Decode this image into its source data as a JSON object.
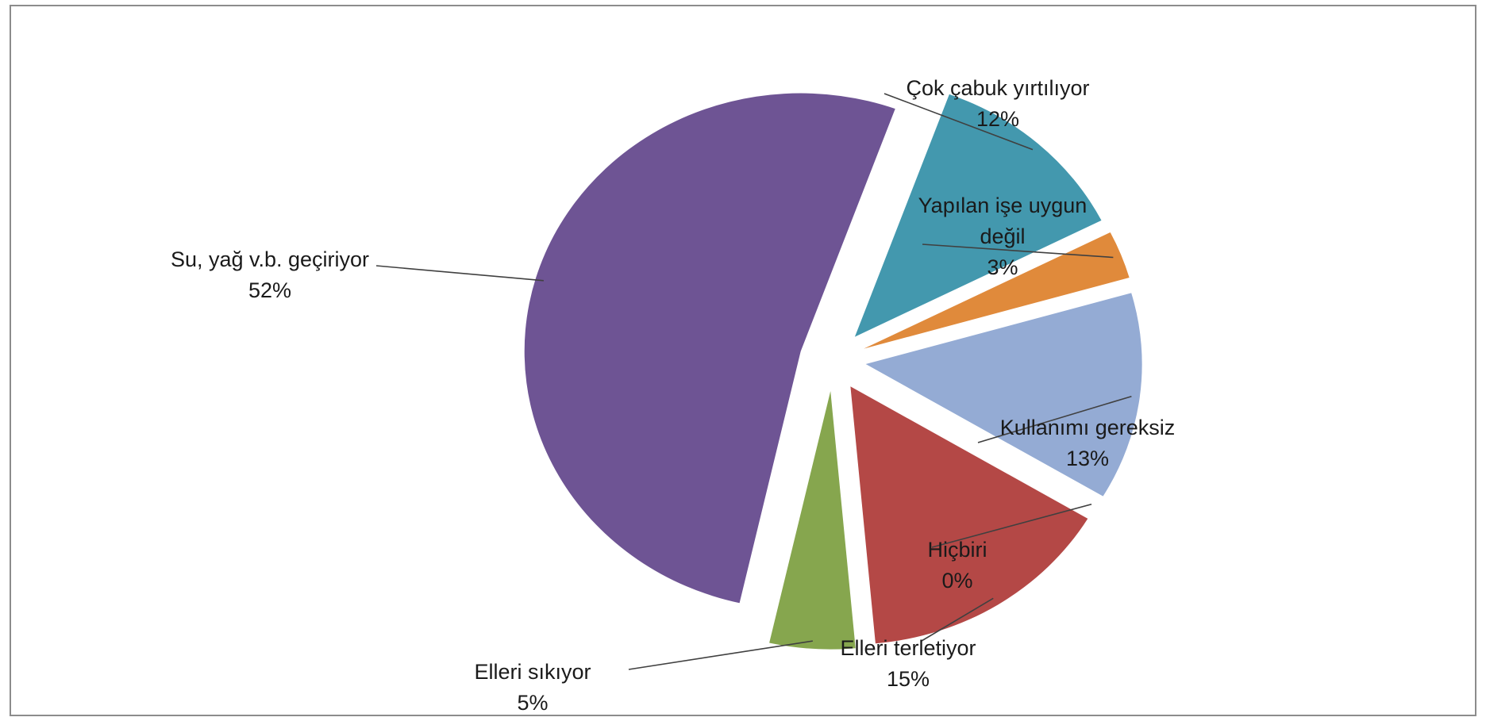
{
  "chart_data": {
    "type": "pie",
    "title": "",
    "exploded": true,
    "start_angle_deg": 20,
    "direction": "clockwise",
    "slices": [
      {
        "label_lines": [
          "Çok çabuk yırtılıyor"
        ],
        "value": 12,
        "pct_text": "12%",
        "color": "#4398AE"
      },
      {
        "label_lines": [
          "Yapılan işe uygun",
          "değil"
        ],
        "value": 3,
        "pct_text": "3%",
        "color": "#E08A3B"
      },
      {
        "label_lines": [
          "Kullanımı gereksiz"
        ],
        "value": 13,
        "pct_text": "13%",
        "color": "#94ABD4"
      },
      {
        "label_lines": [
          "Hiçbiri"
        ],
        "value": 0,
        "pct_text": "0%",
        "color": "#7F7F7F"
      },
      {
        "label_lines": [
          "Elleri terletiyor"
        ],
        "value": 15,
        "pct_text": "15%",
        "color": "#B44846"
      },
      {
        "label_lines": [
          "Elleri sıkıyor"
        ],
        "value": 5,
        "pct_text": "5%",
        "color": "#86A64E"
      },
      {
        "label_lines": [
          "Su, yağ v.b. geçiriyor"
        ],
        "value": 52,
        "pct_text": "52%",
        "color": "#6E5494"
      }
    ],
    "leader_line_color": "#404040"
  }
}
